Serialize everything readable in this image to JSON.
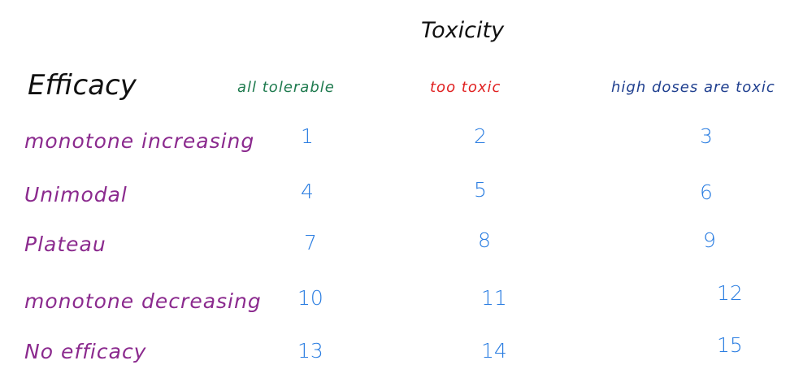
{
  "title": "Toxicity",
  "row_header": "Efficacy",
  "columns": [
    {
      "label": "all tolerable",
      "color": "#1e7a4e"
    },
    {
      "label": "too toxic",
      "color": "#e02020"
    },
    {
      "label": "high doses are toxic",
      "color": "#1f3f8f"
    }
  ],
  "row_label_color": "#8b2a8e",
  "cell_color": "#2a7de1",
  "rows": [
    {
      "label": "monotone increasing",
      "cells": [
        "1",
        "2",
        "3"
      ]
    },
    {
      "label": "Unimodal",
      "cells": [
        "4",
        "5",
        "6"
      ]
    },
    {
      "label": "Plateau",
      "cells": [
        "7",
        "8",
        "9"
      ]
    },
    {
      "label": "monotone decreasing",
      "cells": [
        "10",
        "11",
        "12"
      ]
    },
    {
      "label": "No efficacy",
      "cells": [
        "13",
        "14",
        "15"
      ]
    }
  ]
}
